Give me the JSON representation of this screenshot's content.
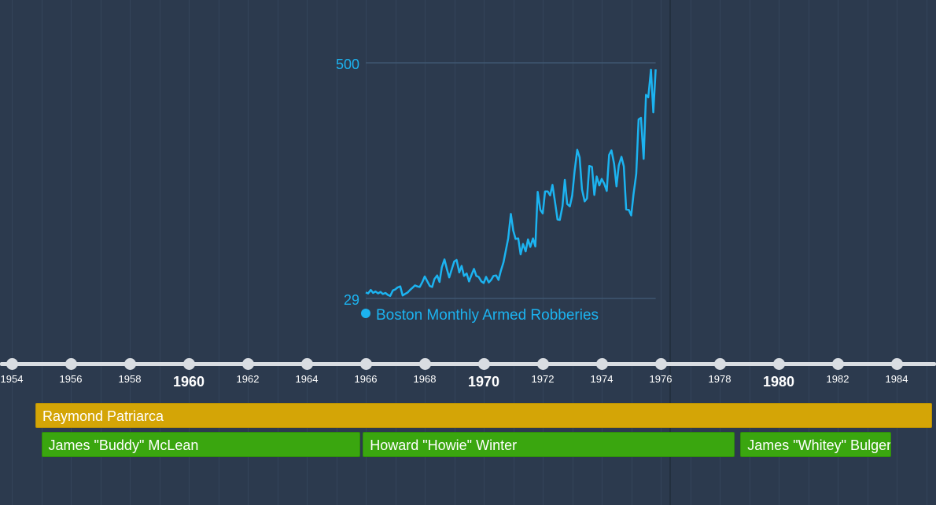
{
  "chart_data": {
    "type": "line",
    "series": [
      {
        "name": "Boston Monthly Armed Robberies",
        "color": "#1cb3f0",
        "x": [
          1966.0,
          1966.08,
          1966.17,
          1966.25,
          1966.33,
          1966.42,
          1966.5,
          1966.58,
          1966.67,
          1966.75,
          1966.83,
          1966.92,
          1967.0,
          1967.08,
          1967.17,
          1967.25,
          1967.33,
          1967.42,
          1967.5,
          1967.58,
          1967.67,
          1967.75,
          1967.83,
          1967.92,
          1968.0,
          1968.08,
          1968.17,
          1968.25,
          1968.33,
          1968.42,
          1968.5,
          1968.58,
          1968.67,
          1968.75,
          1968.83,
          1968.92,
          1969.0,
          1969.08,
          1969.17,
          1969.25,
          1969.33,
          1969.42,
          1969.5,
          1969.58,
          1969.67,
          1969.75,
          1969.83,
          1969.92,
          1970.0,
          1970.08,
          1970.17,
          1970.25,
          1970.33,
          1970.42,
          1970.5,
          1970.58,
          1970.67,
          1970.75,
          1970.83,
          1970.92,
          1971.0,
          1971.08,
          1971.17,
          1971.25,
          1971.33,
          1971.42,
          1971.5,
          1971.58,
          1971.67,
          1971.75,
          1971.83,
          1971.92,
          1972.0,
          1972.08,
          1972.17,
          1972.25,
          1972.33,
          1972.42,
          1972.5,
          1972.58,
          1972.67,
          1972.75,
          1972.83,
          1972.92,
          1973.0,
          1973.08,
          1973.17,
          1973.25,
          1973.33,
          1973.42,
          1973.5,
          1973.58,
          1973.67,
          1973.75,
          1973.83,
          1973.92,
          1974.0,
          1974.08,
          1974.17,
          1974.25,
          1974.33,
          1974.42,
          1974.5,
          1974.58,
          1974.67,
          1974.75,
          1974.83,
          1974.92,
          1975.0,
          1975.08,
          1975.17,
          1975.25,
          1975.33,
          1975.42,
          1975.5,
          1975.58,
          1975.67,
          1975.75,
          1975.83
        ],
        "values": [
          41,
          39,
          46,
          40,
          43,
          39,
          42,
          38,
          40,
          36,
          34,
          45,
          47,
          51,
          53,
          35,
          38,
          41,
          46,
          50,
          55,
          53,
          52,
          62,
          73,
          64,
          54,
          52,
          68,
          75,
          62,
          91,
          107,
          88,
          71,
          88,
          103,
          106,
          81,
          94,
          74,
          79,
          63,
          75,
          88,
          74,
          72,
          63,
          60,
          72,
          61,
          66,
          74,
          75,
          66,
          84,
          101,
          125,
          149,
          198,
          165,
          148,
          149,
          117,
          138,
          123,
          147,
          132,
          149,
          133,
          242,
          206,
          199,
          243,
          243,
          235,
          256,
          220,
          187,
          186,
          213,
          266,
          218,
          213,
          235,
          283,
          326,
          311,
          247,
          223,
          229,
          294,
          292,
          236,
          273,
          255,
          268,
          259,
          244,
          316,
          325,
          298,
          253,
          295,
          312,
          293,
          207,
          206,
          195,
          238,
          278,
          387,
          390,
          308,
          436,
          431,
          486,
          401,
          487
        ]
      }
    ],
    "ylim": [
      29,
      500
    ],
    "yticks": [
      29,
      500
    ],
    "y_tick_labels": [
      "29",
      "500"
    ],
    "legend_position": "bottom-left",
    "grid": true
  },
  "timeline": {
    "x_range": [
      1953.6,
      1985.3
    ],
    "ticks": [
      {
        "year": 1954,
        "label": "1954",
        "major": false
      },
      {
        "year": 1956,
        "label": "1956",
        "major": false
      },
      {
        "year": 1958,
        "label": "1958",
        "major": false
      },
      {
        "year": 1960,
        "label": "1960",
        "major": true
      },
      {
        "year": 1962,
        "label": "1962",
        "major": false
      },
      {
        "year": 1964,
        "label": "1964",
        "major": false
      },
      {
        "year": 1966,
        "label": "1966",
        "major": false
      },
      {
        "year": 1968,
        "label": "1968",
        "major": false
      },
      {
        "year": 1970,
        "label": "1970",
        "major": true
      },
      {
        "year": 1972,
        "label": "1972",
        "major": false
      },
      {
        "year": 1974,
        "label": "1974",
        "major": false
      },
      {
        "year": 1976,
        "label": "1976",
        "major": false
      },
      {
        "year": 1978,
        "label": "1978",
        "major": false
      },
      {
        "year": 1980,
        "label": "1980",
        "major": true
      },
      {
        "year": 1982,
        "label": "1982",
        "major": false
      },
      {
        "year": 1984,
        "label": "1984",
        "major": false
      }
    ],
    "current_marker_year": 1976.3,
    "bars": [
      {
        "label": "Raymond Patriarca",
        "start": 1954.8,
        "end": 1985.2,
        "kind": "boss",
        "color": "#d4a506"
      },
      {
        "label": "James \"Buddy\" McLean",
        "start": 1955.0,
        "end": 1965.8,
        "kind": "leader",
        "color": "#3aa60f"
      },
      {
        "label": "Howard \"Howie\" Winter",
        "start": 1965.9,
        "end": 1978.5,
        "kind": "leader",
        "color": "#3aa60f"
      },
      {
        "label": "James \"Whitey\" Bulger",
        "start": 1978.7,
        "end": 1983.8,
        "kind": "leader",
        "color": "#3aa60f"
      }
    ]
  }
}
